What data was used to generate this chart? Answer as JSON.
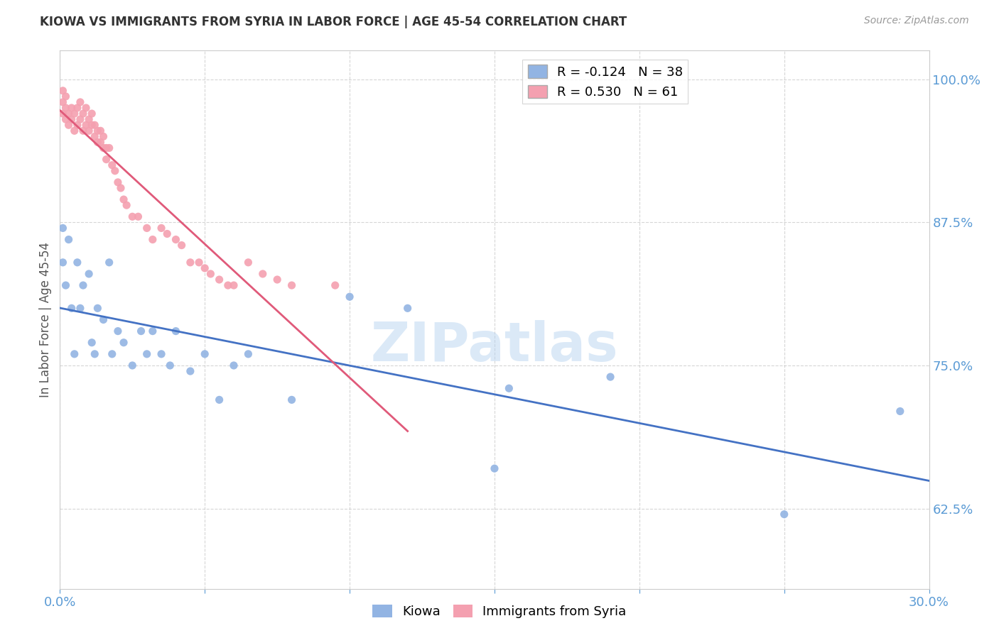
{
  "title": "KIOWA VS IMMIGRANTS FROM SYRIA IN LABOR FORCE | AGE 45-54 CORRELATION CHART",
  "source": "Source: ZipAtlas.com",
  "ylabel": "In Labor Force | Age 45-54",
  "xlim": [
    0.0,
    0.3
  ],
  "ylim": [
    0.555,
    1.025
  ],
  "yticks": [
    0.625,
    0.75,
    0.875,
    1.0
  ],
  "yticklabels": [
    "62.5%",
    "75.0%",
    "87.5%",
    "100.0%"
  ],
  "xticks": [
    0.0,
    0.05,
    0.1,
    0.15,
    0.2,
    0.25,
    0.3
  ],
  "xticklabels": [
    "0.0%",
    "",
    "",
    "",
    "",
    "",
    "30.0%"
  ],
  "kiowa_R": -0.124,
  "kiowa_N": 38,
  "syria_R": 0.53,
  "syria_N": 61,
  "legend_label_blue": "Kiowa",
  "legend_label_pink": "Immigrants from Syria",
  "watermark": "ZIPatlas",
  "blue_color": "#92b4e3",
  "pink_color": "#f4a0b0",
  "blue_line_color": "#4472c4",
  "pink_line_color": "#e05a7a",
  "kiowa_x": [
    0.001,
    0.001,
    0.002,
    0.003,
    0.004,
    0.005,
    0.006,
    0.007,
    0.008,
    0.01,
    0.011,
    0.012,
    0.013,
    0.015,
    0.017,
    0.018,
    0.02,
    0.022,
    0.025,
    0.028,
    0.03,
    0.032,
    0.035,
    0.038,
    0.04,
    0.045,
    0.05,
    0.055,
    0.06,
    0.065,
    0.08,
    0.1,
    0.12,
    0.15,
    0.155,
    0.19,
    0.25,
    0.29
  ],
  "kiowa_y": [
    0.84,
    0.87,
    0.82,
    0.86,
    0.8,
    0.76,
    0.84,
    0.8,
    0.82,
    0.83,
    0.77,
    0.76,
    0.8,
    0.79,
    0.84,
    0.76,
    0.78,
    0.77,
    0.75,
    0.78,
    0.76,
    0.78,
    0.76,
    0.75,
    0.78,
    0.745,
    0.76,
    0.72,
    0.75,
    0.76,
    0.72,
    0.81,
    0.8,
    0.66,
    0.73,
    0.74,
    0.62,
    0.71
  ],
  "syria_x": [
    0.001,
    0.001,
    0.001,
    0.002,
    0.002,
    0.002,
    0.003,
    0.003,
    0.004,
    0.004,
    0.005,
    0.005,
    0.006,
    0.006,
    0.007,
    0.007,
    0.008,
    0.008,
    0.009,
    0.009,
    0.01,
    0.01,
    0.011,
    0.011,
    0.012,
    0.012,
    0.013,
    0.013,
    0.014,
    0.014,
    0.015,
    0.015,
    0.016,
    0.016,
    0.017,
    0.018,
    0.019,
    0.02,
    0.021,
    0.022,
    0.023,
    0.025,
    0.027,
    0.03,
    0.032,
    0.035,
    0.037,
    0.04,
    0.042,
    0.045,
    0.048,
    0.05,
    0.052,
    0.055,
    0.058,
    0.06,
    0.065,
    0.07,
    0.075,
    0.08,
    0.095
  ],
  "syria_y": [
    0.98,
    0.97,
    0.99,
    0.975,
    0.965,
    0.985,
    0.97,
    0.96,
    0.975,
    0.965,
    0.955,
    0.97,
    0.96,
    0.975,
    0.965,
    0.98,
    0.955,
    0.97,
    0.96,
    0.975,
    0.965,
    0.955,
    0.96,
    0.97,
    0.95,
    0.96,
    0.955,
    0.945,
    0.955,
    0.945,
    0.94,
    0.95,
    0.94,
    0.93,
    0.94,
    0.925,
    0.92,
    0.91,
    0.905,
    0.895,
    0.89,
    0.88,
    0.88,
    0.87,
    0.86,
    0.87,
    0.865,
    0.86,
    0.855,
    0.84,
    0.84,
    0.835,
    0.83,
    0.825,
    0.82,
    0.82,
    0.84,
    0.83,
    0.825,
    0.82,
    0.82
  ]
}
